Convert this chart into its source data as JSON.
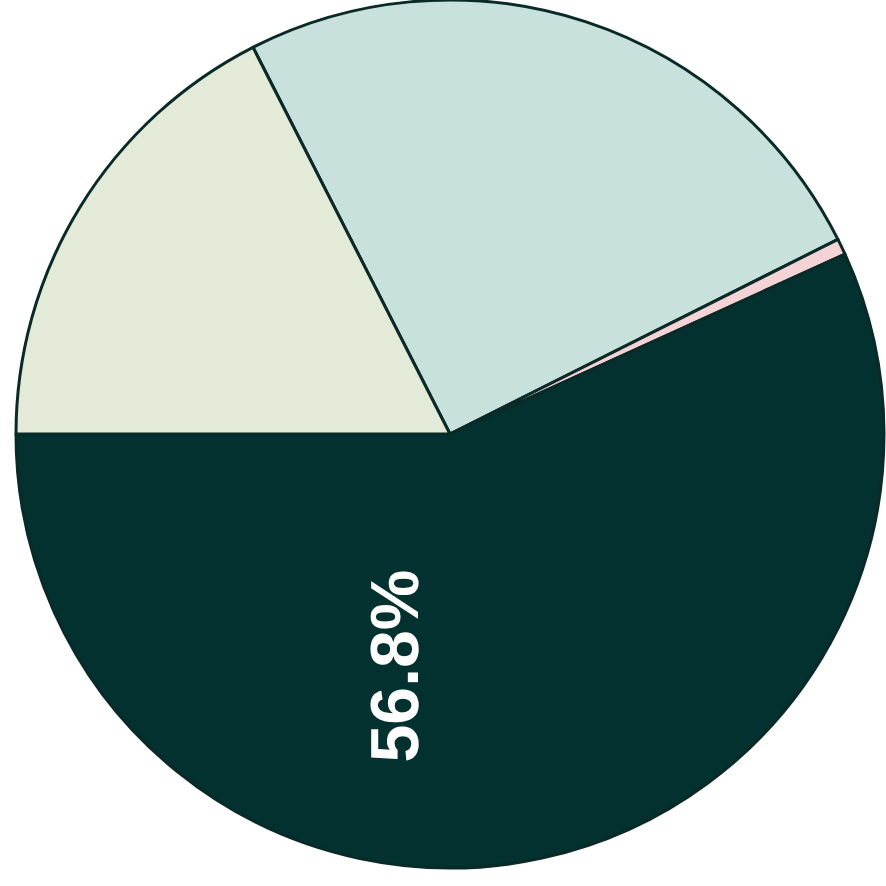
{
  "chart_data": {
    "type": "pie",
    "categories": [
      null,
      null,
      null,
      null
    ],
    "values": [
      25.1,
      0.6,
      56.8,
      17.5
    ],
    "colors": [
      "#c9e1dd",
      "#f3d3d6",
      "#02312f",
      "#e3ebd8"
    ],
    "value_labels": [
      null,
      null,
      "56.8%",
      null
    ]
  }
}
